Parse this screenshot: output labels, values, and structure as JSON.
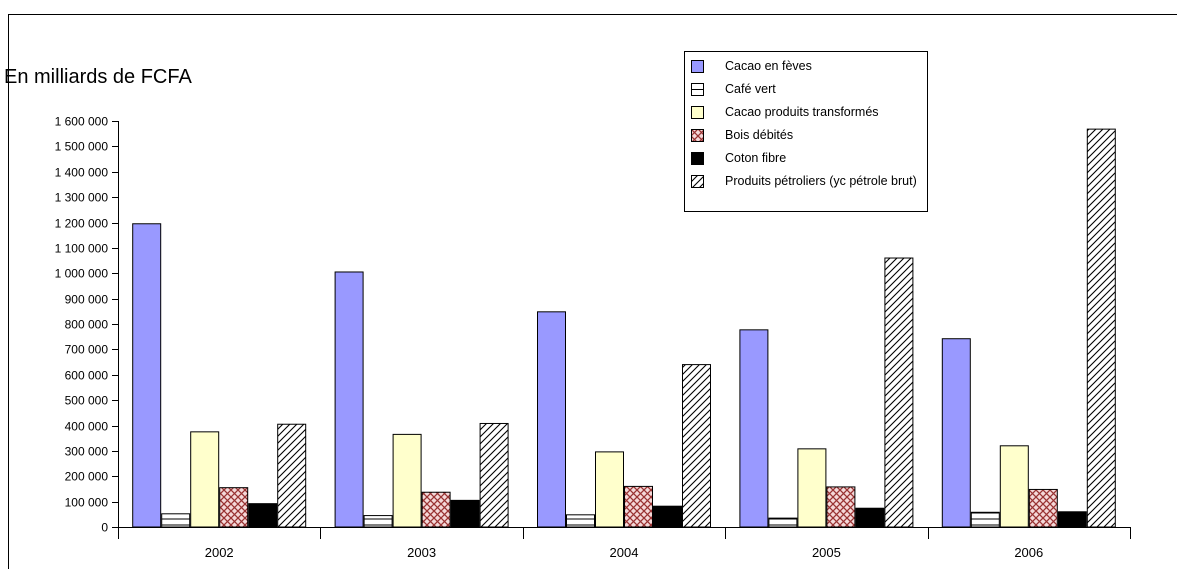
{
  "chart_data": {
    "type": "bar",
    "ylabel": "En milliards de FCFA",
    "ylim": [
      0,
      1600000
    ],
    "yticks": [
      "0",
      "100 000",
      "200 000",
      "300 000",
      "400 000",
      "500 000",
      "600 000",
      "700 000",
      "800 000",
      "900 000",
      "1 000 000",
      "1 100 000",
      "1 200 000",
      "1 300 000",
      "1 400 000",
      "1 500 000",
      "1 600 000"
    ],
    "categories": [
      "2002",
      "2003",
      "2004",
      "2005",
      "2006"
    ],
    "legend_position": "top-right",
    "series": [
      {
        "name": "Cacao en fèves",
        "key": "cacao-feves",
        "values": [
          1195000,
          1005000,
          848000,
          777000,
          742000
        ],
        "color": "#9999ff",
        "pattern": "solid"
      },
      {
        "name": "Café vert",
        "key": "cafe-vert",
        "values": [
          52000,
          45000,
          48000,
          35000,
          58000
        ],
        "color": "#ffffff",
        "pattern": "hstripe"
      },
      {
        "name": "Cacao produits transformés",
        "key": "cacao-transformes",
        "values": [
          375000,
          365000,
          296000,
          308000,
          320000
        ],
        "color": "#ffffcc",
        "pattern": "solid"
      },
      {
        "name": "Bois débités",
        "key": "bois-debites",
        "values": [
          155000,
          137000,
          160000,
          158000,
          148000
        ],
        "color": "#993333",
        "pattern": "crosshatch"
      },
      {
        "name": "Coton fibre",
        "key": "coton-fibre",
        "values": [
          92000,
          105000,
          82000,
          74000,
          60000
        ],
        "color": "#000000",
        "pattern": "solid"
      },
      {
        "name": "Produits pétroliers (yc pétrole brut)",
        "key": "petroliers",
        "values": [
          405000,
          408000,
          640000,
          1060000,
          1568000
        ],
        "color": "#000000",
        "pattern": "diagonal"
      }
    ]
  }
}
